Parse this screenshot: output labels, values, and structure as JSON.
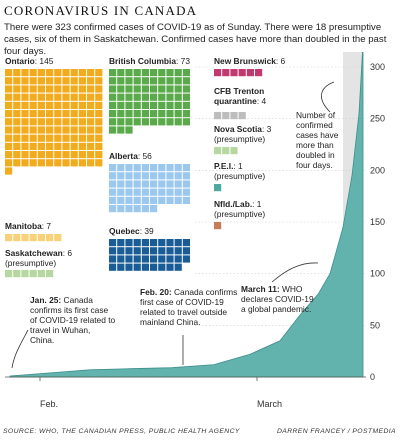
{
  "header": {
    "title": "CORONAVIRUS IN CANADA",
    "subtitle": "There were 323 confirmed cases of COVID-19 as of Sunday. There were 18 presumptive cases, six of them in Saskatchewan. Confirmed cases have more than doubled in the past four days."
  },
  "footer": {
    "source": "SOURCE: WHO, THE CANADIAN PRESS, PUBLIC HEALTH AGENCY",
    "credit": "DARREN FRANCEY / POSTMEDIA"
  },
  "chart_data": [
    {
      "type": "waffle",
      "groups": [
        {
          "name": "Ontario",
          "label": "Ontario",
          "value": 145,
          "color": "#f2ab1c"
        },
        {
          "name": "Manitoba",
          "label": "Manitoba",
          "value": 7,
          "color": "#f7d27a"
        },
        {
          "name": "Saskatchewan",
          "label": "Saskatchewan",
          "value": 6,
          "note": "(presumptive)",
          "color": "#b7d7a1"
        },
        {
          "name": "British Columbia",
          "label": "British Columbia",
          "value": 73,
          "color": "#5aa94a"
        },
        {
          "name": "Alberta",
          "label": "Alberta",
          "value": 56,
          "color": "#9cc8ee"
        },
        {
          "name": "Quebec",
          "label": "Quebec",
          "value": 39,
          "color": "#1a5c96"
        },
        {
          "name": "New Brunswick",
          "label": "New Brunswick",
          "value": 6,
          "color": "#c03a6f"
        },
        {
          "name": "CFB Trenton quarantine",
          "label": "CFB Trenton quarantine",
          "value": 4,
          "color": "#bdbdbd"
        },
        {
          "name": "Nova Scotia",
          "label": "Nova Scotia",
          "value": 3,
          "note": "(presumptive)",
          "color": "#b7d7a1"
        },
        {
          "name": "P.E.I.",
          "label": "P.E.I.",
          "value": 1,
          "note": "(presumptive)",
          "color": "#4ea8a2"
        },
        {
          "name": "Nfld./Lab.",
          "label": "Nfld./Lab.",
          "value": 1,
          "note": "(presumptive)",
          "color": "#c87b5a"
        }
      ]
    },
    {
      "type": "area",
      "color": "#62b2ad",
      "x_ticks": [
        "Feb.",
        "March"
      ],
      "ylim": [
        0,
        320
      ],
      "y_ticks": [
        0,
        50,
        100,
        150,
        200,
        250,
        300
      ],
      "series": [
        {
          "dates": [
            "Jan. 25",
            "Feb. 1",
            "Feb. 8",
            "Feb. 15",
            "Feb. 20",
            "Feb. 25",
            "Mar. 1",
            "Mar. 5",
            "Mar. 8",
            "Mar. 10",
            "Mar. 11",
            "Mar. 12",
            "Mar. 13",
            "Mar. 14",
            "Mar. 15"
          ],
          "values": [
            1,
            4,
            7,
            8,
            9,
            12,
            22,
            35,
            60,
            80,
            100,
            145,
            195,
            255,
            323
          ]
        }
      ],
      "annotations": [
        {
          "bold": "Jan. 25:",
          "text": [
            " Canada",
            "confirms its first case",
            "of COVID-19 related to",
            "travel in Wuhan,",
            "China."
          ]
        },
        {
          "bold": "Feb. 20:",
          "text": [
            " Canada confirms",
            "first case of COVID-19",
            "related to travel outside",
            "mainland China."
          ]
        },
        {
          "bold": "March 11:",
          "text": [
            " WHO",
            "declares COVID-19",
            "a global pandemic."
          ]
        },
        {
          "bold": "",
          "text": [
            "Number of",
            "confirmed",
            "cases have",
            "more than",
            "doubled in",
            "four days."
          ]
        }
      ]
    }
  ]
}
